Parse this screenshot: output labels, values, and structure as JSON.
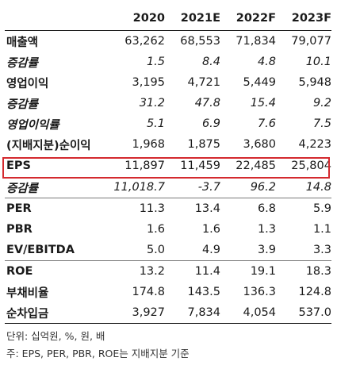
{
  "table": {
    "header": {
      "label": "",
      "cols": [
        "2020",
        "2021E",
        "2022F",
        "2023F"
      ]
    },
    "rows": [
      {
        "label": "매출액",
        "values": [
          "63,262",
          "68,553",
          "71,834",
          "79,077"
        ],
        "italic": false
      },
      {
        "label": "증감률",
        "values": [
          "1.5",
          "8.4",
          "4.8",
          "10.1"
        ],
        "italic": true
      },
      {
        "label": "영업이익",
        "values": [
          "3,195",
          "4,721",
          "5,449",
          "5,948"
        ],
        "italic": false
      },
      {
        "label": "증감률",
        "values": [
          "31.2",
          "47.8",
          "15.4",
          "9.2"
        ],
        "italic": true
      },
      {
        "label": "영업이익률",
        "values": [
          "5.1",
          "6.9",
          "7.6",
          "7.5"
        ],
        "italic": true
      },
      {
        "label": "(지배지분)순이익",
        "values": [
          "1,968",
          "1,875",
          "3,680",
          "4,223"
        ],
        "italic": false
      },
      {
        "label": "EPS",
        "values": [
          "11,897",
          "11,459",
          "22,485",
          "25,804"
        ],
        "italic": false,
        "highlight": true
      },
      {
        "label": "증감률",
        "values": [
          "11,018.7",
          "-3.7",
          "96.2",
          "14.8"
        ],
        "italic": true
      },
      {
        "label": "PER",
        "values": [
          "11.3",
          "13.4",
          "6.8",
          "5.9"
        ],
        "italic": false
      },
      {
        "label": "PBR",
        "values": [
          "1.6",
          "1.6",
          "1.3",
          "1.1"
        ],
        "italic": false
      },
      {
        "label": "EV/EBITDA",
        "values": [
          "5.0",
          "4.9",
          "3.9",
          "3.3"
        ],
        "italic": false
      },
      {
        "label": "ROE",
        "values": [
          "13.2",
          "11.4",
          "19.1",
          "18.3"
        ],
        "italic": false
      },
      {
        "label": "부채비율",
        "values": [
          "174.8",
          "143.5",
          "136.3",
          "124.8"
        ],
        "italic": false
      },
      {
        "label": "순차입금",
        "values": [
          "3,927",
          "7,834",
          "4,054",
          "537.0"
        ],
        "italic": false
      }
    ]
  },
  "notes": {
    "unit": "단위: 십억원, %, 원, 배",
    "footnote": "주: EPS, PER, PBR, ROE는 지배지분 기준"
  },
  "colors": {
    "highlight_border": "#d42a2f"
  }
}
